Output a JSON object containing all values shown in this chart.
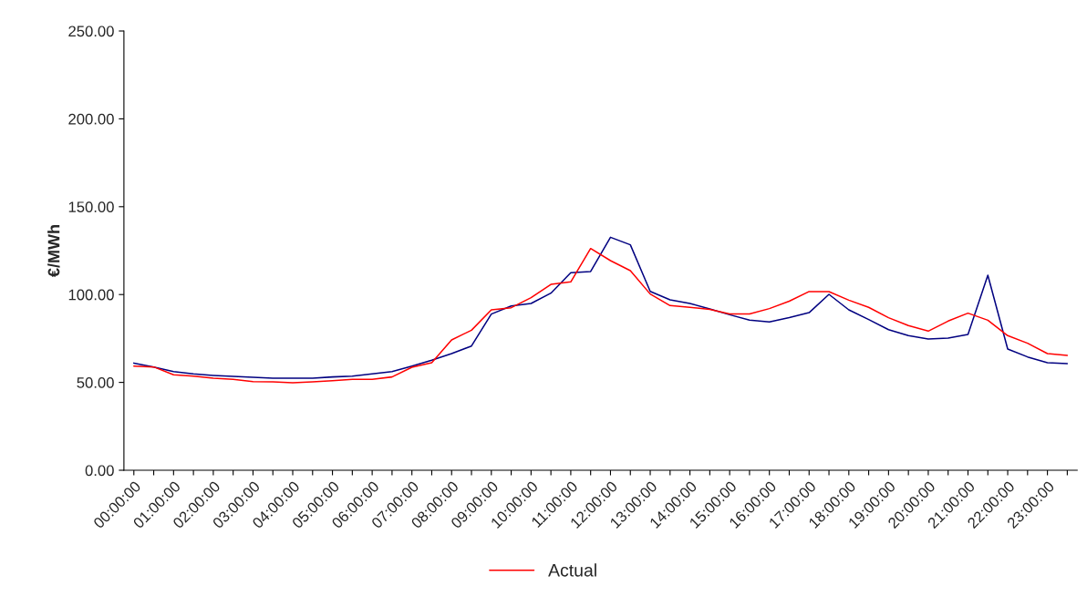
{
  "chart_data": {
    "type": "line",
    "ylabel": "€/MWh",
    "categories": [
      "00:00:00",
      null,
      "01:00:00",
      null,
      "02:00:00",
      null,
      "03:00:00",
      null,
      "04:00:00",
      null,
      "05:00:00",
      null,
      "06:00:00",
      null,
      "07:00:00",
      null,
      "08:00:00",
      null,
      "09:00:00",
      null,
      "10:00:00",
      null,
      "11:00:00",
      null,
      "12:00:00",
      null,
      "13:00:00",
      null,
      "14:00:00",
      null,
      "15:00:00",
      null,
      "16:00:00",
      null,
      "17:00:00",
      null,
      "18:00:00",
      null,
      "19:00:00",
      null,
      "20:00:00",
      null,
      "21:00:00",
      null,
      "22:00:00",
      null,
      "23:00:00",
      null
    ],
    "series": [
      {
        "color": "#000080",
        "values": [
          61.0,
          58.8,
          56.2,
          54.8,
          54.0,
          53.4,
          52.9,
          52.4,
          52.4,
          52.4,
          53.1,
          53.6,
          54.8,
          56.2,
          59.3,
          62.6,
          66.4,
          70.7,
          88.9,
          93.5,
          94.9,
          100.8,
          112.4,
          113.1,
          132.6,
          128.3,
          101.8,
          97.0,
          94.9,
          91.8,
          88.5,
          85.4,
          84.4,
          86.9,
          89.7,
          100.1,
          91.3,
          85.8,
          80.0,
          76.6,
          74.7,
          75.2,
          77.3,
          111.0,
          69.0,
          64.5,
          61.2,
          60.7
        ]
      },
      {
        "name": "Actual",
        "color": "#ff0000",
        "values": [
          59.3,
          58.8,
          54.3,
          53.6,
          52.4,
          51.7,
          50.5,
          50.3,
          49.8,
          50.3,
          51.0,
          51.7,
          51.7,
          53.1,
          58.6,
          61.2,
          74.2,
          79.7,
          91.3,
          92.5,
          98.2,
          105.8,
          107.2,
          126.2,
          119.3,
          113.6,
          100.3,
          93.7,
          92.7,
          91.5,
          88.9,
          88.9,
          92.0,
          96.2,
          101.7,
          101.7,
          96.8,
          92.7,
          86.8,
          82.3,
          79.2,
          84.9,
          89.4,
          85.4,
          76.6,
          72.3,
          66.4,
          65.4
        ]
      }
    ],
    "ylim": [
      0,
      250
    ],
    "yticks": [
      {
        "value": 0,
        "label": "0.00"
      },
      {
        "value": 50,
        "label": "50.00"
      },
      {
        "value": 100,
        "label": "100.00"
      },
      {
        "value": 150,
        "label": "150.00"
      },
      {
        "value": 200,
        "label": "200.00"
      },
      {
        "value": 250,
        "label": "250.00"
      }
    ],
    "grid": false,
    "legend": "bottom",
    "marker": "none",
    "line_style": "solid"
  }
}
